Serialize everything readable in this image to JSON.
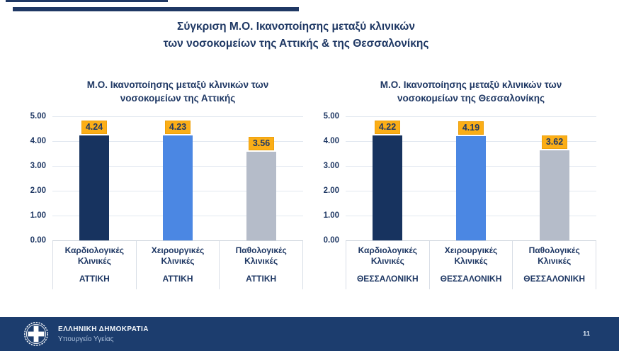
{
  "slide": {
    "title": "Σύγκριση Μ.Ο. Ικανοποίησης μεταξύ κλινικών των νοσοκομείων της Αττικής & της Θεσσαλονίκης",
    "title_lines": [
      "Σύγκριση Μ.Ο. Ικανοποίησης μεταξύ κλινικών",
      "των νοσοκομείων της Αττικής & της Θεσσαλονίκης"
    ],
    "page_number": "11"
  },
  "footer": {
    "org_name": "ΕΛΛΗΝΙΚΗ ΔΗΜΟΚΡΑΤΙΑ",
    "department": "Υπουργείο Υγείας",
    "emblem": "greek-republic-emblem"
  },
  "colors": {
    "navy_text": "#1F3864",
    "accent_bar": "#1F3864",
    "bar_navy": "#17335F",
    "bar_blue": "#4B87E3",
    "bar_gray": "#B5BCC9",
    "value_label_bg": "#FBAE17",
    "gridline": "#E2E8F0",
    "footer_bg": "#1C3D6E"
  },
  "chart_data": [
    {
      "type": "bar",
      "title": "Μ.Ο. Ικανοποίησης μεταξύ κλινικών των νοσοκομείων της Αττικής",
      "title_lines": [
        "Μ.Ο. Ικανοποίησης μεταξύ κλινικών των",
        "νοσοκομείων της Αττικής"
      ],
      "categories": [
        {
          "line1": "Καρδιολογικές",
          "line2": "Κλινικές"
        },
        {
          "line1": "Χειρουργικές",
          "line2": "Κλινικές"
        },
        {
          "line1": "Παθολογικές",
          "line2": "Κλινικές"
        }
      ],
      "group_label": "ΑΤΤΙΚΗ",
      "values": [
        4.24,
        4.23,
        3.56
      ],
      "value_labels": [
        "4.24",
        "4.23",
        "3.56"
      ],
      "bar_colors": [
        "#17335F",
        "#4B87E3",
        "#B5BCC9"
      ],
      "ylim": [
        0,
        5
      ],
      "yticks": [
        "5.00",
        "4.00",
        "3.00",
        "2.00",
        "1.00",
        "0.00"
      ],
      "grid": true,
      "legend": false
    },
    {
      "type": "bar",
      "title": "Μ.Ο. Ικανοποίησης μεταξύ κλινικών των νοσοκομείων της Θεσσαλονίκης",
      "title_lines": [
        "Μ.Ο. Ικανοποίησης μεταξύ κλινικών των",
        "νοσοκομείων της Θεσσαλονίκης"
      ],
      "categories": [
        {
          "line1": "Καρδιολογικές",
          "line2": "Κλινικές"
        },
        {
          "line1": "Χειρουργικές",
          "line2": "Κλινικές"
        },
        {
          "line1": "Παθολογικές",
          "line2": "Κλινικές"
        }
      ],
      "group_label": "ΘΕΣΣΑΛΟΝΙΚΗ",
      "values": [
        4.22,
        4.19,
        3.62
      ],
      "value_labels": [
        "4.22",
        "4.19",
        "3.62"
      ],
      "bar_colors": [
        "#17335F",
        "#4B87E3",
        "#B5BCC9"
      ],
      "ylim": [
        0,
        5
      ],
      "yticks": [
        "5.00",
        "4.00",
        "3.00",
        "2.00",
        "1.00",
        "0.00"
      ],
      "grid": true,
      "legend": false
    }
  ]
}
